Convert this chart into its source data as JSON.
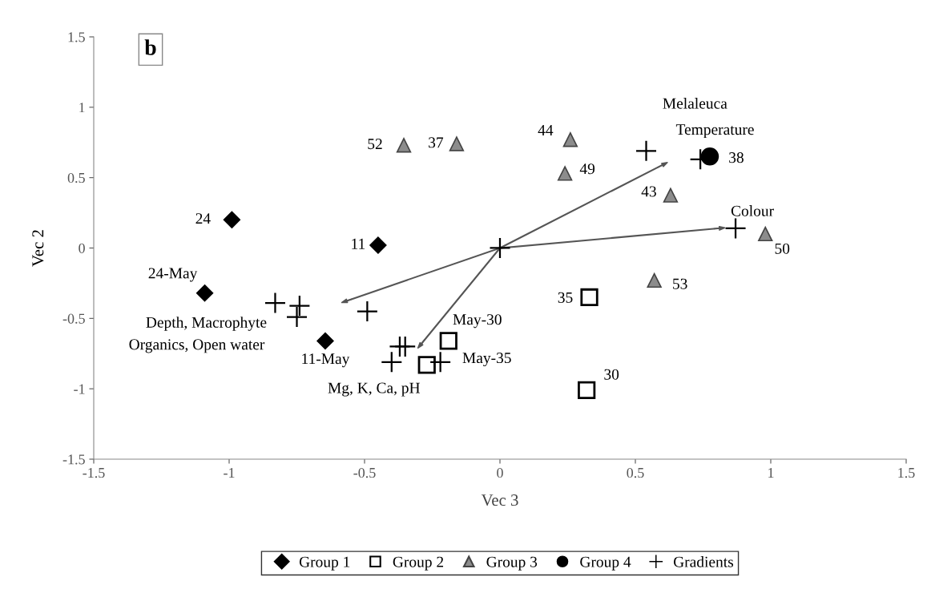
{
  "chart_data": {
    "type": "scatter",
    "xlabel": "Vec 3",
    "ylabel": "Vec 2",
    "xlim": [
      -1.5,
      1.5
    ],
    "ylim": [
      -1.5,
      1.5
    ],
    "xticks": [
      -1.5,
      -1,
      -0.5,
      0,
      0.5,
      1,
      1.5
    ],
    "yticks": [
      -1.5,
      -1,
      -0.5,
      0,
      0.5,
      1,
      1.5
    ],
    "grid": false,
    "legend": "bottom",
    "series": [
      {
        "name": "Group 1",
        "marker": "diamond",
        "color": "#000000",
        "x": [
          -0.99,
          -0.45,
          -1.09,
          -0.645
        ],
        "values": [
          0.2,
          0.02,
          -0.32,
          -0.66
        ]
      },
      {
        "name": "Group 2",
        "marker": "square",
        "color": "#000000",
        "x": [
          0.33,
          0.32,
          -0.19,
          -0.27
        ],
        "values": [
          -0.35,
          -1.01,
          -0.66,
          -0.83
        ]
      },
      {
        "name": "Group 3",
        "marker": "triangle",
        "color": "#8c8c8c",
        "x": [
          -0.355,
          -0.16,
          0.26,
          0.24,
          0.63,
          0.98,
          0.57
        ],
        "values": [
          0.73,
          0.74,
          0.77,
          0.53,
          0.375,
          0.1,
          -0.23
        ]
      },
      {
        "name": "Group 4",
        "marker": "circle",
        "color": "#000000",
        "x": [
          0.775
        ],
        "values": [
          0.65
        ]
      },
      {
        "name": "Gradients",
        "marker": "cross",
        "color": "#000000",
        "x": [
          0,
          0.54,
          0.87,
          0.74,
          -0.83,
          -0.74,
          -0.75,
          -0.49,
          -0.37,
          -0.35,
          -0.4,
          -0.22
        ],
        "values": [
          0,
          0.69,
          0.14,
          0.63,
          -0.39,
          -0.41,
          -0.49,
          -0.45,
          -0.7,
          -0.7,
          -0.81,
          -0.81
        ]
      },
      {
        "type": "line",
        "color": "#555555",
        "x": [
          0,
          0.6
        ],
        "values": [
          0,
          0.59
        ]
      },
      {
        "type": "line",
        "color": "#555555",
        "x": [
          0,
          0.81
        ],
        "values": [
          0,
          0.14
        ]
      },
      {
        "type": "line",
        "color": "#555555",
        "x": [
          0,
          -0.565
        ],
        "values": [
          0,
          -0.375
        ]
      },
      {
        "type": "line",
        "color": "#555555",
        "x": [
          0,
          -0.29
        ],
        "values": [
          0,
          -0.68
        ]
      }
    ],
    "annotations": [
      "b",
      {
        "text": "24",
        "x": -0.99,
        "y": 0.2
      },
      {
        "text": "11",
        "x": -0.45,
        "y": 0.02
      },
      {
        "text": "24-May",
        "x": -1.09,
        "y": -0.32
      },
      {
        "text": "11-May",
        "x": -0.645,
        "y": -0.66
      },
      {
        "text": "35",
        "x": 0.33,
        "y": -0.35
      },
      {
        "text": "30",
        "x": 0.32,
        "y": -1.01
      },
      {
        "text": "May-30",
        "x": -0.19,
        "y": -0.66
      },
      {
        "text": "May-35",
        "x": -0.27,
        "y": -0.83
      },
      {
        "text": "52",
        "x": -0.355,
        "y": 0.73
      },
      {
        "text": "37",
        "x": -0.16,
        "y": 0.74
      },
      {
        "text": "44",
        "x": 0.26,
        "y": 0.77
      },
      {
        "text": "49",
        "x": 0.24,
        "y": 0.53
      },
      {
        "text": "43",
        "x": 0.63,
        "y": 0.375
      },
      {
        "text": "50",
        "x": 0.98,
        "y": 0.1
      },
      {
        "text": "53",
        "x": 0.57,
        "y": -0.23
      },
      {
        "text": "38",
        "x": 0.775,
        "y": 0.65
      },
      "Melaleuca",
      {
        "text": "Temperature",
        "x": 0.54,
        "y": 0.69
      },
      {
        "text": "Colour",
        "x": 0.87,
        "y": 0.14
      },
      {
        "text": "Depth, Macrophyte",
        "x": -0.83,
        "y": -0.39
      },
      {
        "text": "Organics, Open water",
        "x": -0.75,
        "y": -0.49
      },
      {
        "text": "Mg, K, Ca, pH",
        "x": -0.4,
        "y": -0.81
      }
    ]
  }
}
